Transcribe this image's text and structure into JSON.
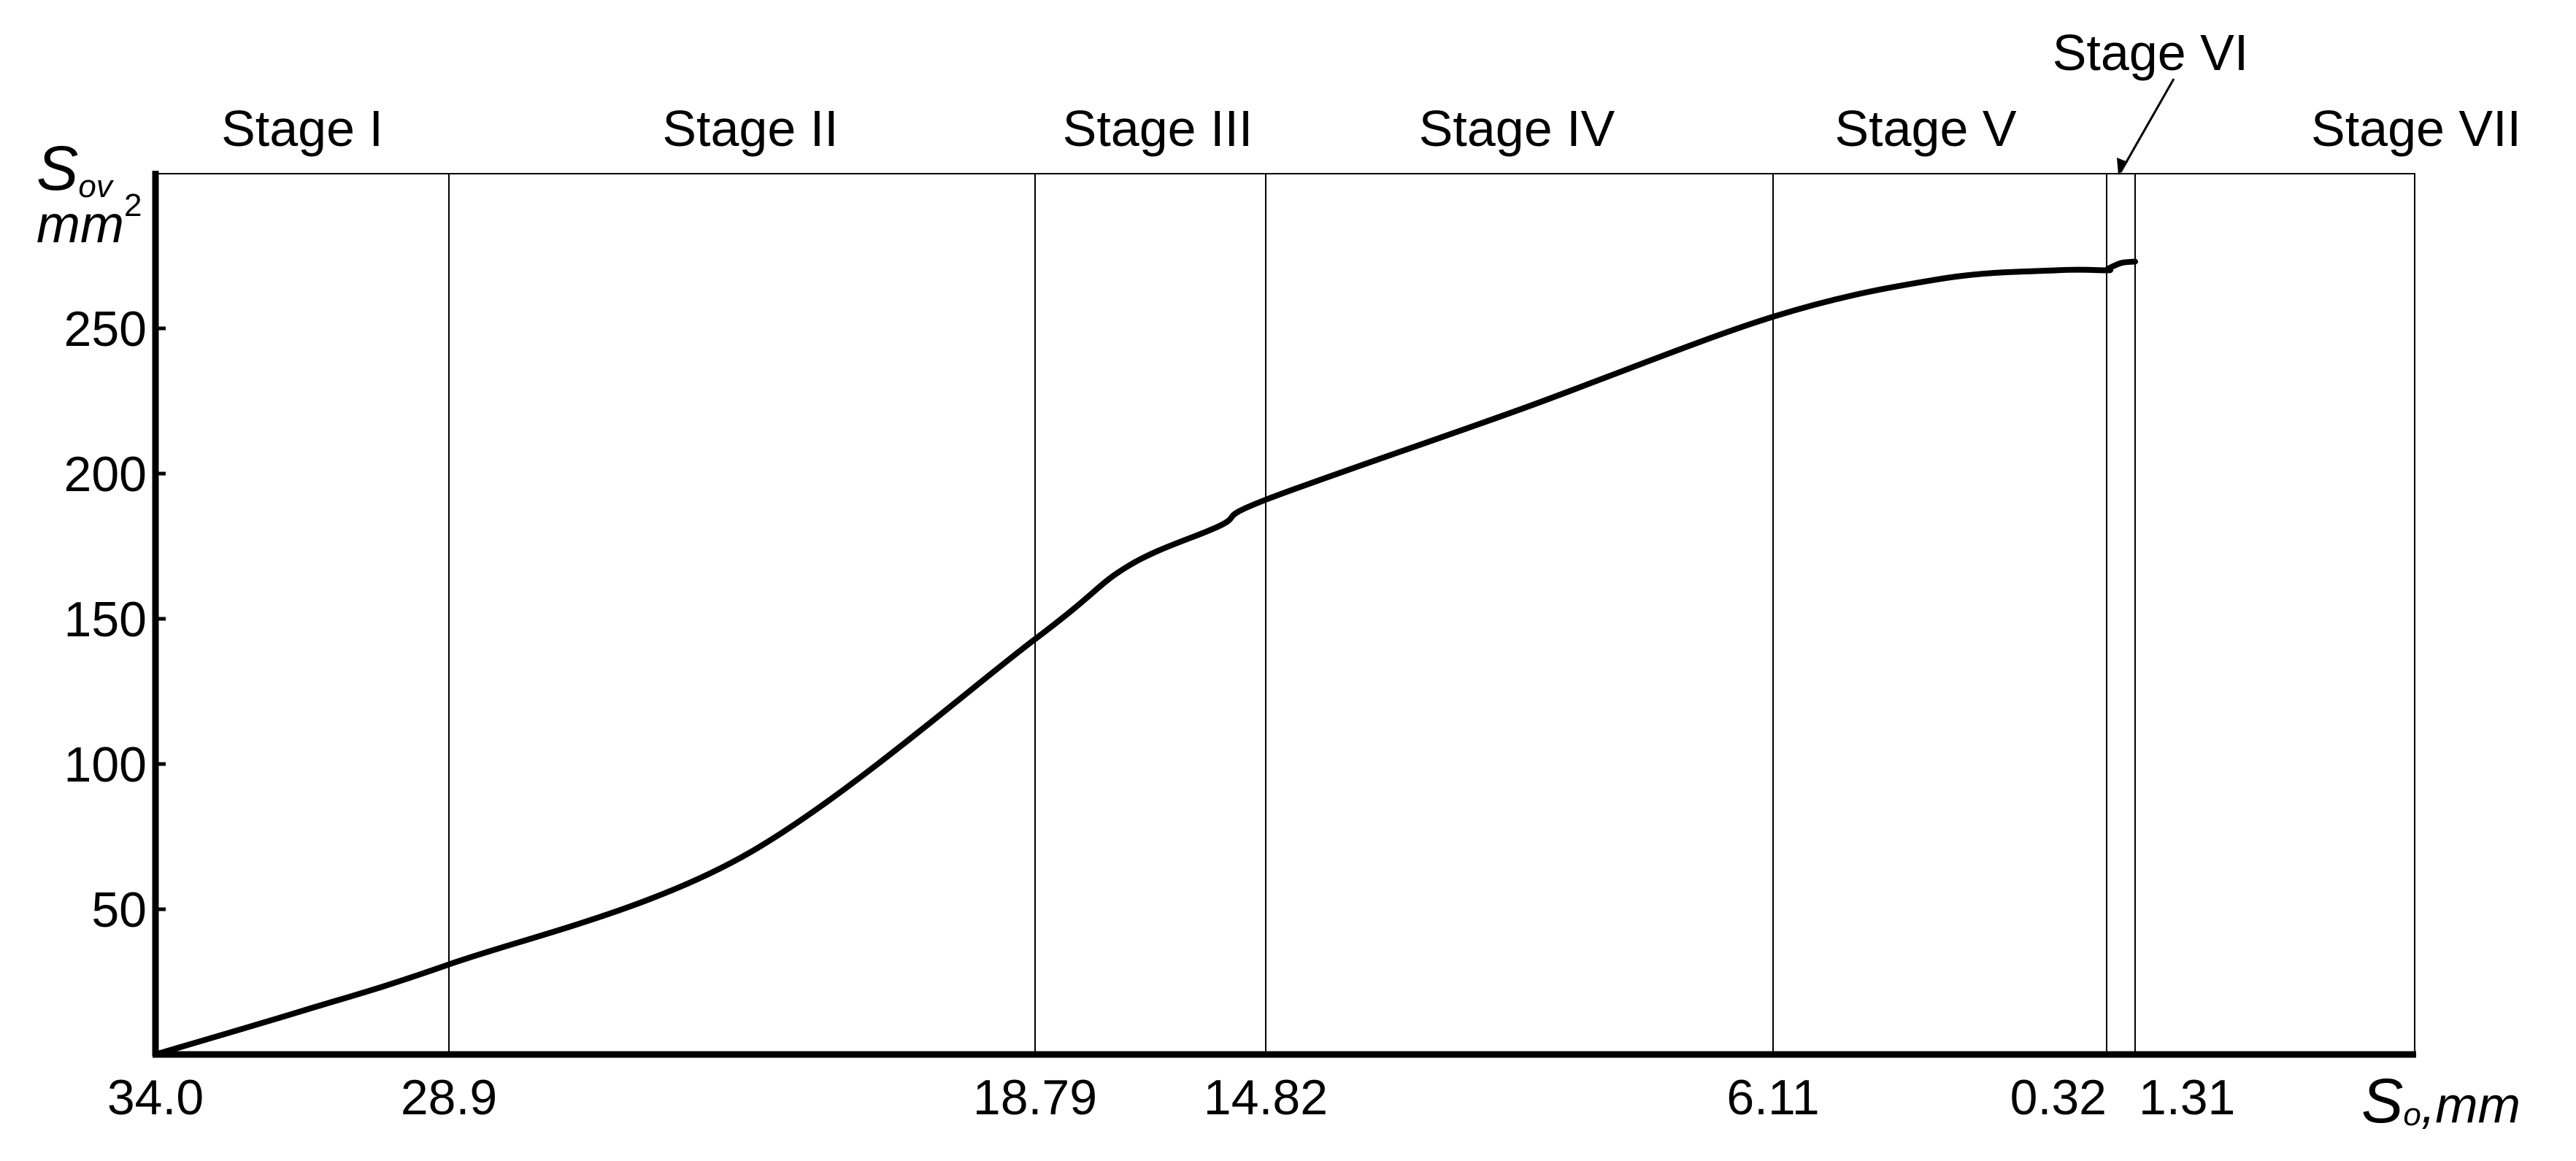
{
  "chart_data": {
    "type": "line",
    "ylabel": {
      "symbol": "S",
      "subscript": "ov",
      "unit": "mm",
      "unit_sup": "2"
    },
    "xlabel": {
      "symbol": "S",
      "subscript": "o",
      "unit": ",mm"
    },
    "ylim": [
      0,
      300
    ],
    "y_ticks": [
      "50",
      "100",
      "150",
      "200",
      "250"
    ],
    "x_ticks": [
      "34.0",
      "28.9",
      "18.79",
      "14.82",
      "6.11",
      "0.32",
      "1.31"
    ],
    "stages": [
      "Stage I",
      "Stage II",
      "Stage III",
      "Stage IV",
      "Stage V",
      "Stage VI",
      "Stage VII"
    ],
    "grid": false,
    "series": [
      {
        "x_stage_boundary_index": [
          0,
          0.5,
          1,
          1.5,
          2,
          2.4,
          2.8,
          3,
          3.5,
          4,
          4.5,
          4.85,
          5.0,
          5.05,
          5.5,
          6.0
        ],
        "values": [
          0,
          15,
          31,
          68,
          143,
          168,
          182,
          191,
          222,
          254,
          267,
          270,
          270,
          270.5,
          272.5,
          273
        ]
      }
    ]
  }
}
